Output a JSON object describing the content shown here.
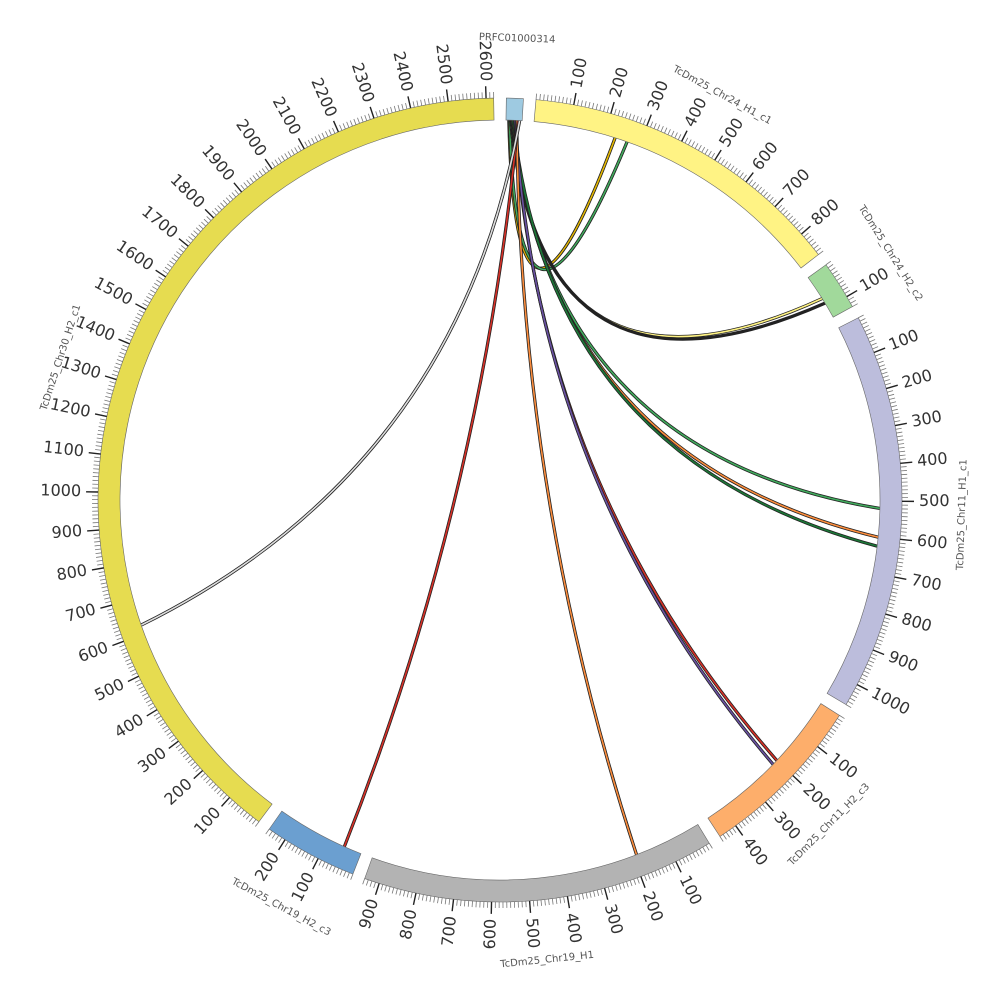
{
  "chart_data": {
    "type": "chord",
    "minor_tick_step": 10,
    "segments": [
      {
        "name": "PRFC01000314",
        "color": "#9ecae1",
        "length": 45,
        "ticks": []
      },
      {
        "name": "TcDm25_Chr24_H1_c1",
        "color": "#fff384",
        "length": 870,
        "ticks": [
          100,
          200,
          300,
          400,
          500,
          600,
          700,
          800
        ]
      },
      {
        "name": "TcDm25_Chr24_H2_c2",
        "color": "#a1d99b",
        "length": 130,
        "ticks": [
          100
        ]
      },
      {
        "name": "TcDm25_Chr11_H1_c1",
        "color": "#bcbddc",
        "length": 1060,
        "ticks": [
          100,
          200,
          300,
          400,
          500,
          600,
          700,
          800,
          900,
          1000
        ]
      },
      {
        "name": "TcDm25_Chr11_H2_c3",
        "color": "#fdae6b",
        "length": 450,
        "ticks": [
          100,
          200,
          300,
          400
        ]
      },
      {
        "name": "TcDm25_Chr19_H1",
        "color": "#b3b3b3",
        "length": 940,
        "ticks": [
          100,
          200,
          300,
          400,
          500,
          600,
          700,
          800,
          900
        ]
      },
      {
        "name": "TcDm25_Chr19_H2_c3",
        "color": "#6b9fd0",
        "length": 250,
        "ticks": [
          100,
          200
        ]
      },
      {
        "name": "TcDm25_Chr30_H2_c1",
        "color": "#e6dc50",
        "length": 2620,
        "ticks": [
          100,
          200,
          300,
          400,
          500,
          600,
          700,
          800,
          900,
          1000,
          1100,
          1200,
          1300,
          1400,
          1500,
          1600,
          1700,
          1800,
          1900,
          2000,
          2100,
          2200,
          2300,
          2400,
          2500,
          2600
        ]
      }
    ],
    "links": [
      {
        "source_segment": 0,
        "source_position": 8,
        "target_segment": 1,
        "target_position": 230,
        "color": "#e6b800"
      },
      {
        "source_segment": 0,
        "source_position": 10,
        "target_segment": 1,
        "target_position": 265,
        "color": "#41ab5d"
      },
      {
        "source_segment": 0,
        "source_position": 12,
        "target_segment": 2,
        "target_position": 70,
        "color": "#fff384"
      },
      {
        "source_segment": 0,
        "source_position": 14,
        "target_segment": 2,
        "target_position": 85,
        "color": "#222222"
      },
      {
        "source_segment": 0,
        "source_position": 16,
        "target_segment": 3,
        "target_position": 520,
        "color": "#41ab5d"
      },
      {
        "source_segment": 0,
        "source_position": 18,
        "target_segment": 3,
        "target_position": 600,
        "color": "#fd8d3c"
      },
      {
        "source_segment": 0,
        "source_position": 20,
        "target_segment": 3,
        "target_position": 625,
        "color": "#1b7837"
      },
      {
        "source_segment": 0,
        "source_position": 24,
        "target_segment": 4,
        "target_position": 200,
        "color": "#d73027"
      },
      {
        "source_segment": 0,
        "source_position": 26,
        "target_segment": 4,
        "target_position": 215,
        "color": "#6a51a3"
      },
      {
        "source_segment": 0,
        "source_position": 30,
        "target_segment": 5,
        "target_position": 190,
        "color": "#fd8d3c"
      },
      {
        "source_segment": 0,
        "source_position": 34,
        "target_segment": 6,
        "target_position": 50,
        "color": "#d73027"
      },
      {
        "source_segment": 0,
        "source_position": 38,
        "target_segment": 7,
        "target_position": 625,
        "color": "#dddddd"
      }
    ]
  }
}
